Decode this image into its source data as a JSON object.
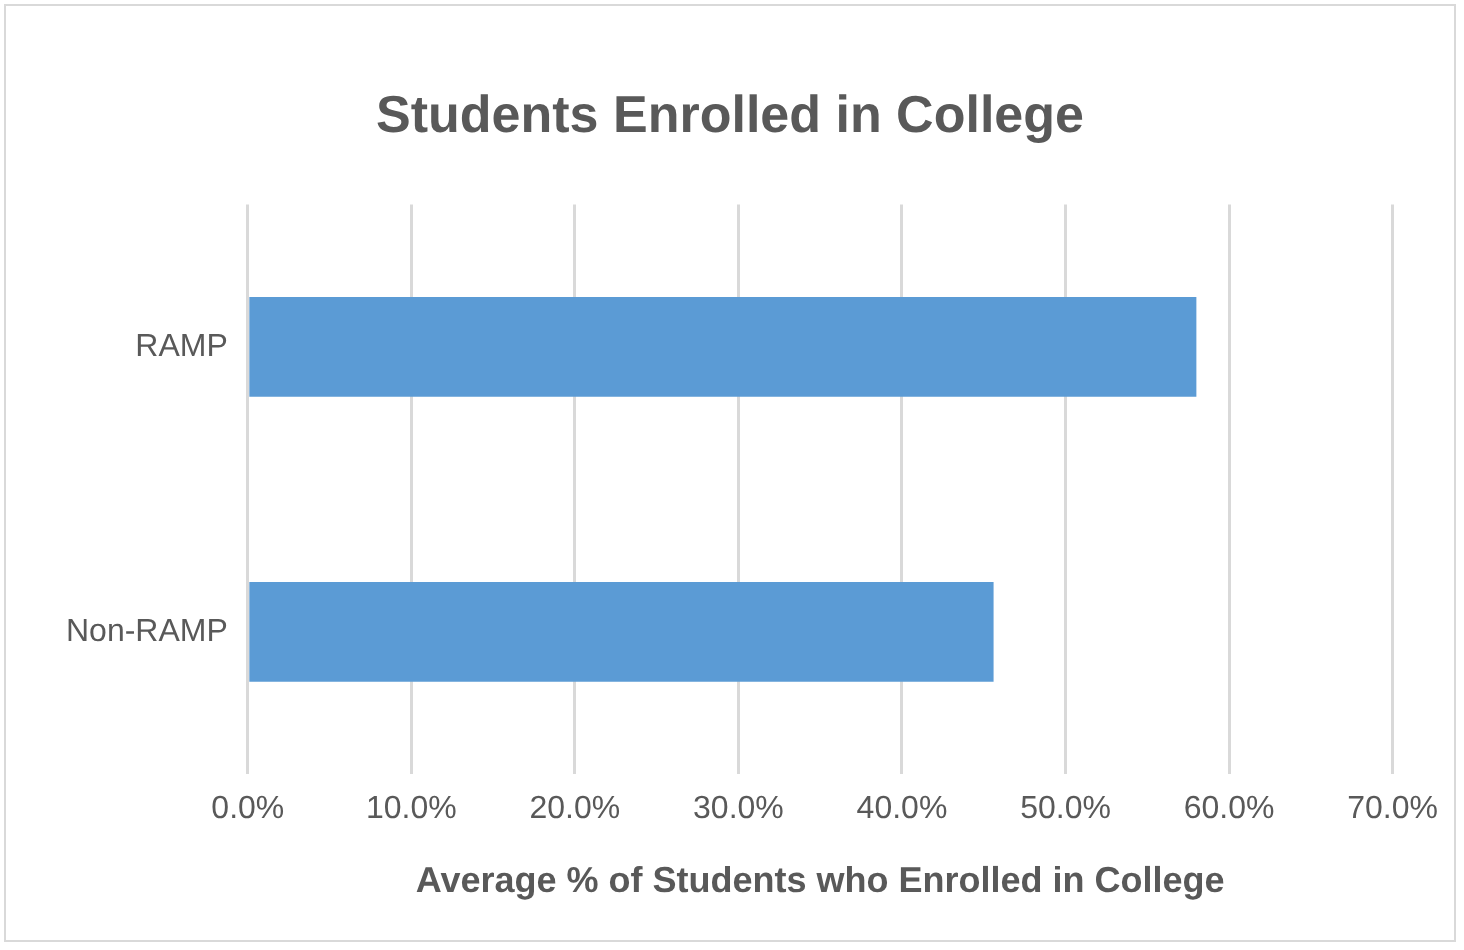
{
  "chart_data": {
    "type": "bar",
    "orientation": "horizontal",
    "title": "Students Enrolled in College",
    "xlabel": "Average % of Students who Enrolled in College",
    "categories": [
      "RAMP",
      "Non-RAMP"
    ],
    "values": [
      58.0,
      45.6
    ],
    "color": "#5b9bd5",
    "xlim": [
      0,
      70
    ],
    "xticks": [
      {
        "value": 0,
        "label": "0.0%"
      },
      {
        "value": 10,
        "label": "10.0%"
      },
      {
        "value": 20,
        "label": "20.0%"
      },
      {
        "value": 30,
        "label": "30.0%"
      },
      {
        "value": 40,
        "label": "40.0%"
      },
      {
        "value": 50,
        "label": "50.0%"
      },
      {
        "value": 60,
        "label": "60.0%"
      },
      {
        "value": 70,
        "label": "70.0%"
      }
    ],
    "grid": "x",
    "legend": false
  }
}
